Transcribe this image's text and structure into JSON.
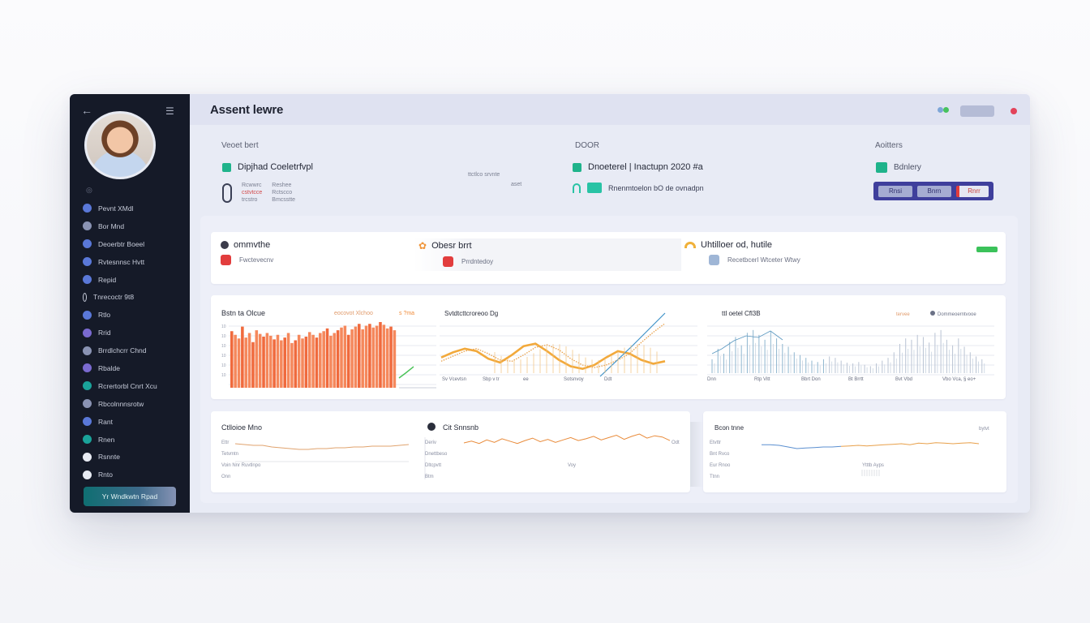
{
  "app": {
    "title": "Assent lewre"
  },
  "sidebar": {
    "caption": "◎",
    "items": [
      {
        "label": "Pevnt XMdl",
        "color": "#5a78d8"
      },
      {
        "label": "Bor  Mnd",
        "color": "#8a93b3"
      },
      {
        "label": "Deoerbtr Boeel",
        "color": "#5a78d8"
      },
      {
        "label": "Rvtesnnsc Hvtt",
        "color": "#5a78d8"
      },
      {
        "label": "Repid",
        "color": "#5a78d8"
      },
      {
        "label": "Tnrecoctr 9t8",
        "color": "#151a28"
      },
      {
        "label": "Rtlo",
        "color": "#5a78d8"
      },
      {
        "label": "Rrid",
        "color": "#7a6ad0"
      },
      {
        "label": "Brrdlchcrr Chnd",
        "color": "#8a93b3"
      },
      {
        "label": "Rbalde",
        "color": "#7a6ad0"
      },
      {
        "label": "Rcrertorbl Cnrt Xcu",
        "color": "#1aa39a"
      },
      {
        "label": "Rbcolnnnsrotw",
        "color": "#8a93b3"
      },
      {
        "label": "Rant",
        "color": "#5a78d8"
      },
      {
        "label": "Rnen",
        "color": "#1aa39a"
      },
      {
        "label": "Rsnnte",
        "color": "#e8ebf3"
      },
      {
        "label": "Rnto",
        "color": "#e8ebf3"
      }
    ],
    "cta": "Yr  Wndkwtn Rpad"
  },
  "summary": {
    "col1": {
      "label": "Veoet bert",
      "value": "Dipjhad Coeletrfvpl",
      "lines": [
        "Rcwwrc",
        "cstvtcce",
        "trcstro"
      ],
      "lines2": [
        "Reshee",
        "Rctscco",
        "Bmcsstte"
      ],
      "mid": "ttctlco srvnte",
      "mid2": "aset"
    },
    "col2": {
      "label": "DOOR",
      "value": "Dnoeterel | Inactupn 2020 #a",
      "value2": "Rnenmtoelon bO de ovnadpn"
    },
    "col3": {
      "label": "Aoitters",
      "value": "Bdnlery",
      "seg": [
        "Rnsi",
        "Bnrn",
        "Rnrr"
      ]
    },
    "colors": {
      "green": "#1fb38b",
      "teal": "#29c3a5",
      "red": "#e23d3d"
    }
  },
  "kpis": [
    {
      "title": "ommvthe",
      "sub": "Fwctevecnv",
      "icon": "#3b3b4a",
      "subicon": "#e23d3d"
    },
    {
      "title": "Obesr brrt",
      "sub": "Prrdntedoy",
      "icon": "#f0953a",
      "subicon": "#e23d3d"
    },
    {
      "title": "Uhtilloer od, hutile",
      "sub": "Recetbcerl Wtceter Wtwy",
      "icon": "#f0b13a",
      "subicon": "#9fb6d6"
    }
  ],
  "charts_row1": {
    "bar": {
      "title": "Bstn ta Olcue",
      "note": "eocovot Xlchoo",
      "note2": "s ?ma",
      "xlabels": [
        "",
        "",
        "",
        "",
        ""
      ]
    },
    "wave": {
      "title": "Svtdtcttcroreoo Dg",
      "xlabels": [
        "Sv Vcevtsn",
        "Sbp v tr",
        "ee",
        "Sotsnvoy",
        "Ddt"
      ]
    },
    "dense": {
      "title": "ttl  oetel  Cfl3B",
      "note": "tervee",
      "note2": "Dommeoerntvooe",
      "xlabels": [
        "Dnn",
        "Rtp  Vitt",
        "Bbrt  Don",
        "Bt  Brrtt",
        "Bvt Vbd",
        "Vbo  Vca, §  eo+"
      ]
    }
  },
  "charts_row2": {
    "left": {
      "title": "Ctlloioe Mno",
      "lines": [
        "Ettr",
        "Tetvmtn",
        "Voin  Nnr  Ruvtlnpo",
        "Onn"
      ]
    },
    "mid": {
      "title": "Cit Snnsnb",
      "lines": [
        "Deriv",
        "Dnettbeso",
        "Dltcpvtt",
        "Btm"
      ],
      "note": "Odt",
      "foot": "Voy"
    },
    "right": {
      "title": "Bcon tnne",
      "lines": [
        "Etvttr",
        "Bnt  Rvco",
        "Eur   Rnoo",
        "Ttnn"
      ],
      "note": "bytvt",
      "foot": "Ytttb  Ayps"
    }
  },
  "chart_data": [
    {
      "type": "bar",
      "title": "Bstn ta Olcue",
      "series": [
        {
          "name": "",
          "values": [
            62,
            58,
            54,
            67,
            55,
            60,
            50,
            63,
            59,
            56,
            60,
            57,
            53,
            58,
            52,
            55,
            60,
            49,
            52,
            58,
            54,
            56,
            61,
            58,
            55,
            60,
            62,
            65,
            57,
            60,
            63,
            66,
            68,
            58,
            64,
            67,
            70,
            64,
            68,
            70,
            66,
            68,
            72,
            69,
            65,
            67,
            63
          ]
        }
      ],
      "ylim": [
        0,
        80
      ]
    },
    {
      "type": "line",
      "title": "Svtdtcttcroreoo Dg",
      "series": [
        {
          "name": "",
          "values": [
            30,
            38,
            44,
            40,
            28,
            22,
            34,
            48,
            52,
            40,
            26,
            16,
            12,
            18,
            30,
            40,
            36,
            26,
            20,
            24
          ]
        },
        {
          "name": "",
          "values": [
            24,
            32,
            40,
            44,
            36,
            26,
            24,
            34,
            46,
            50,
            42,
            28,
            18,
            14,
            18,
            26,
            36,
            54,
            70,
            84
          ]
        }
      ]
    },
    {
      "type": "bar",
      "title": "ttl  oetel  Cfl3B",
      "series": [
        {
          "name": "",
          "values": [
            20,
            35,
            28,
            45,
            52,
            40,
            58,
            62,
            55,
            48,
            60,
            50,
            42,
            38,
            30,
            26,
            22,
            18,
            16,
            20,
            24,
            22,
            18,
            15,
            14,
            16,
            12,
            10,
            14,
            18,
            22,
            30,
            42,
            50,
            48,
            55,
            52,
            44,
            58,
            62,
            48,
            40,
            50,
            38,
            30,
            24,
            20
          ]
        }
      ]
    },
    {
      "type": "line",
      "title": "Ctlloioe Mno",
      "series": [
        {
          "name": "",
          "values": [
            22,
            21,
            20,
            20,
            18,
            17,
            16,
            15,
            15,
            16,
            16,
            17,
            17,
            18,
            18,
            19,
            19,
            19,
            20,
            21
          ]
        }
      ]
    },
    {
      "type": "line",
      "title": "Cit Snnsnb",
      "series": [
        {
          "name": "",
          "values": [
            15,
            18,
            14,
            20,
            16,
            22,
            18,
            14,
            19,
            23,
            17,
            21,
            16,
            20,
            24,
            19,
            22,
            26,
            20,
            24,
            28,
            21,
            26,
            30,
            23,
            27,
            25,
            19
          ]
        }
      ]
    },
    {
      "type": "line",
      "title": "Bcon tnne",
      "series": [
        {
          "name": "",
          "values": [
            22,
            22,
            21,
            18,
            15,
            16,
            17,
            18,
            18,
            19
          ]
        },
        {
          "name": "",
          "values": [
            19,
            20,
            21,
            20,
            21,
            22,
            23,
            24,
            22,
            25,
            24,
            26,
            25,
            24,
            25,
            26,
            24
          ]
        }
      ]
    }
  ]
}
